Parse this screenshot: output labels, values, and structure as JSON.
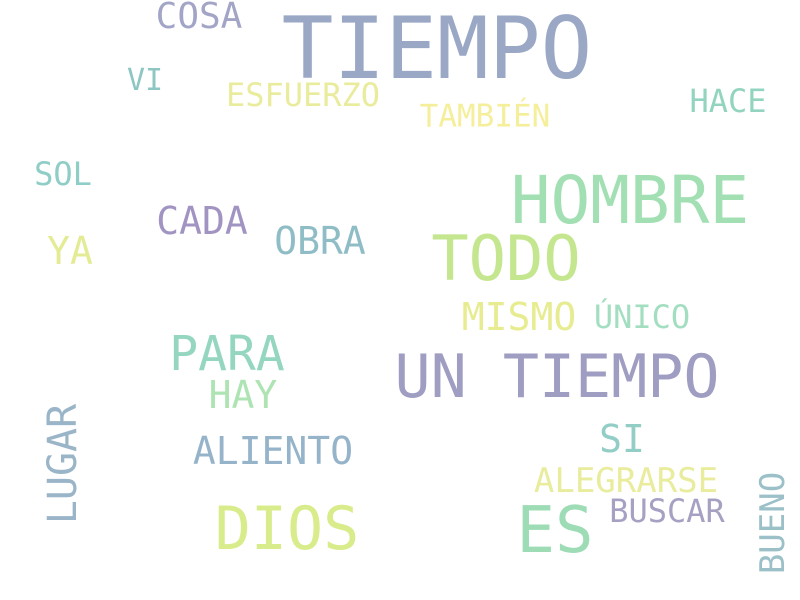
{
  "words": [
    {
      "text": "TIEMPO",
      "color": "#9aa8c6"
    },
    {
      "text": "COSA",
      "color": "#a3a5c7"
    },
    {
      "text": "VI",
      "color": "#8ec6c3"
    },
    {
      "text": "ESFUERZO",
      "color": "#e9ec9c"
    },
    {
      "text": "TAMBIÉN",
      "color": "#f5ee9a"
    },
    {
      "text": "HACE",
      "color": "#92d4c0"
    },
    {
      "text": "SOL",
      "color": "#8fcdc7"
    },
    {
      "text": "HOMBRE",
      "color": "#a2e0b4"
    },
    {
      "text": "CADA",
      "color": "#a294c2"
    },
    {
      "text": "OBRA",
      "color": "#8fbdc6"
    },
    {
      "text": "TODO",
      "color": "#c4e68f"
    },
    {
      "text": "YA",
      "color": "#e3ec95"
    },
    {
      "text": "MISMO",
      "color": "#e7ec91"
    },
    {
      "text": "ÚNICO",
      "color": "#a4dec1"
    },
    {
      "text": "PARA",
      "color": "#95d6c0"
    },
    {
      "text": "UN TIEMPO",
      "color": "#9f9dc2"
    },
    {
      "text": "HAY",
      "color": "#aee4b3"
    },
    {
      "text": "LUGAR",
      "color": "#9ab4c8"
    },
    {
      "text": "ALIENTO",
      "color": "#95b3c9"
    },
    {
      "text": "SI",
      "color": "#92cdc6"
    },
    {
      "text": "ALEGRARSE",
      "color": "#e8ec9c"
    },
    {
      "text": "BUENO",
      "color": "#9bc0c8"
    },
    {
      "text": "BUSCAR",
      "color": "#a6a1c3"
    },
    {
      "text": "DIOS",
      "color": "#d8ec8c"
    },
    {
      "text": "ES",
      "color": "#9edcb6"
    }
  ]
}
